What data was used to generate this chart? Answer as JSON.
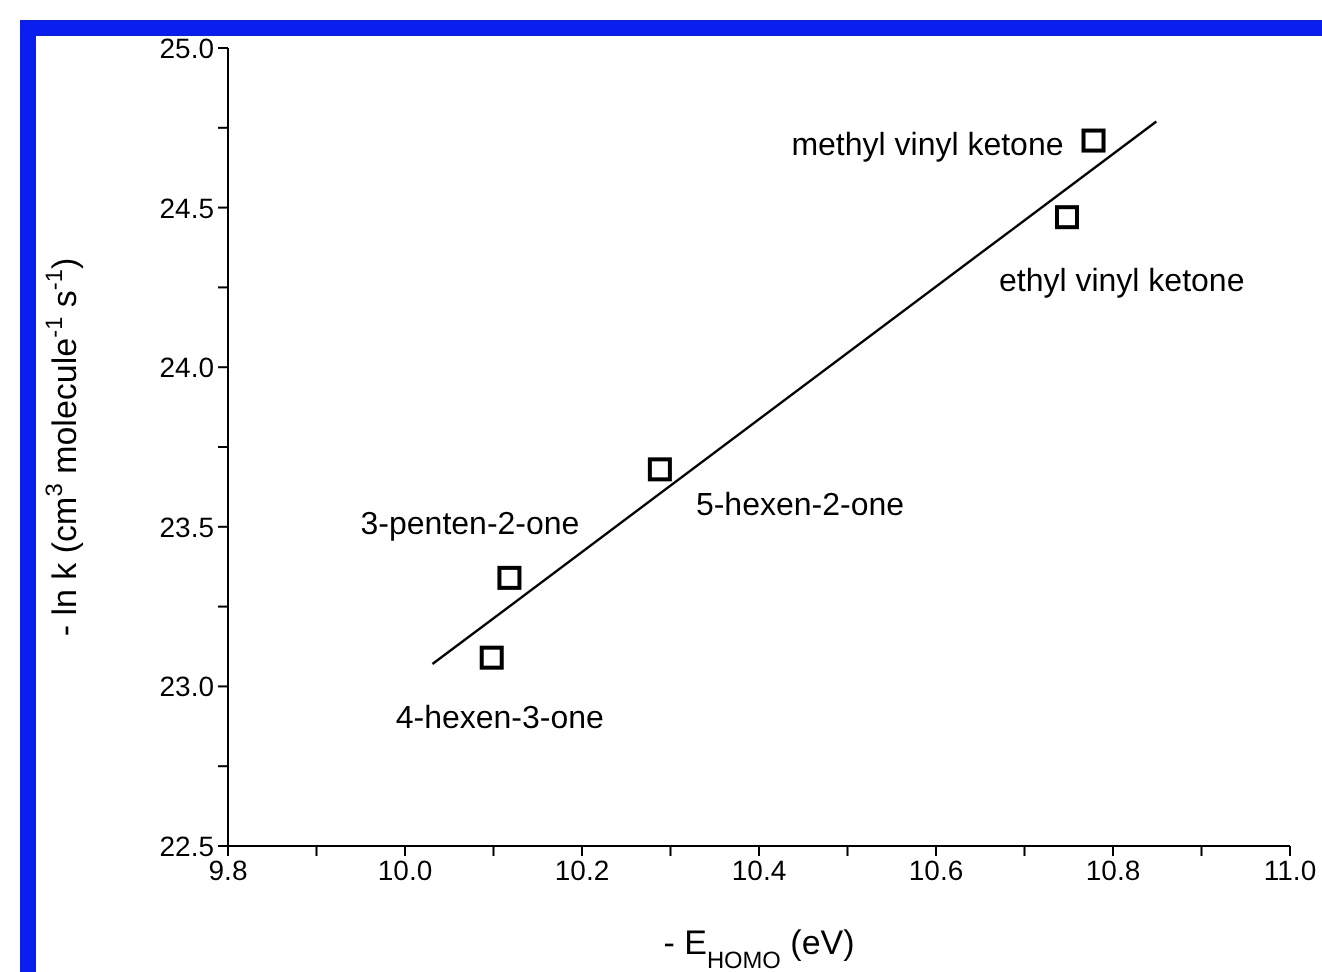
{
  "chart_data": {
    "type": "scatter",
    "xlabel": "- E$_{HOMO}$ (eV)",
    "ylabel": "- ln k (cm$^{3}$ molecule$^{-1}$ s$^{-1}$)",
    "xlim": [
      9.8,
      11.0
    ],
    "ylim": [
      22.5,
      25.0
    ],
    "xticks": [
      9.8,
      {
        "value": 9.9,
        "label": null
      },
      {
        "value": 10.0,
        "label": "10.0"
      },
      {
        "value": 10.1,
        "label": null
      },
      10.2,
      {
        "value": 10.3,
        "label": null
      },
      10.4,
      {
        "value": 10.5,
        "label": null
      },
      10.6,
      {
        "value": 10.7,
        "label": null
      },
      10.8,
      {
        "value": 10.9,
        "label": null
      },
      {
        "value": 11.0,
        "label": "11.0"
      }
    ],
    "yticks": [
      22.5,
      {
        "value": 22.75,
        "label": null
      },
      {
        "value": 23.0,
        "label": "23.0"
      },
      {
        "value": 23.25,
        "label": null
      },
      23.5,
      {
        "value": 23.75,
        "label": null
      },
      {
        "value": 24.0,
        "label": "24.0"
      },
      {
        "value": 24.25,
        "label": null
      },
      24.5,
      {
        "value": 24.75,
        "label": null
      },
      {
        "value": 25.0,
        "label": "25.0"
      }
    ],
    "grid": false,
    "legend": false,
    "marker": "square",
    "series": [
      {
        "type": "scatter",
        "color": "#000000",
        "x": [
          10.098,
          10.118,
          10.288,
          10.748,
          10.778
        ],
        "values": [
          23.09,
          23.34,
          23.68,
          24.47,
          24.71
        ]
      },
      {
        "type": "line",
        "color": "#000000",
        "marker": "none",
        "line_style": "solid",
        "x": [
          10.031,
          10.849
        ],
        "values": [
          23.07,
          24.77
        ]
      }
    ],
    "annotations": [
      {
        "text": "4-hexen-3-one",
        "x": 10.098,
        "y": 23.09
      },
      {
        "text": "3-penten-2-one",
        "x": 10.118,
        "y": 23.34
      },
      {
        "text": "5-hexen-2-one",
        "x": 10.288,
        "y": 23.68
      },
      {
        "text": "ethyl vinyl ketone",
        "x": 10.748,
        "y": 24.47
      },
      {
        "text": "methyl vinyl ketone",
        "x": 10.778,
        "y": 24.71
      }
    ]
  }
}
